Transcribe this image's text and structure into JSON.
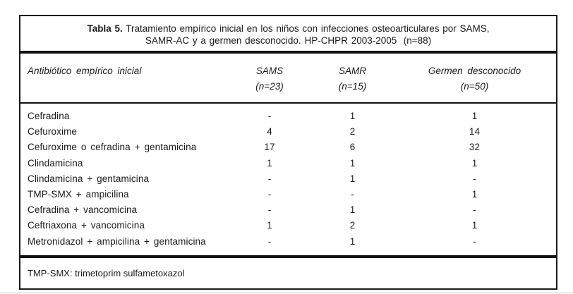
{
  "page": {
    "title": {
      "label_bold": "Tabla 5.",
      "line1_rest": " Tratamiento empírico inicial en los niños con infecciones osteoarticulares por SAMS,",
      "line2": "SAMR-AC y a germen desconocido. HP-CHPR 2003-2005  (n=88)"
    },
    "header": {
      "col_antibiotic": "Antibiótico empírico inicial",
      "col_sams": "SAMS",
      "col_sams_n": "(n=23)",
      "col_samr": "SAMR",
      "col_samr_n": "(n=15)",
      "col_unknown": "Germen desconocido",
      "col_unknown_n": "(n=50)"
    },
    "rows": [
      {
        "antibiotic": "Cefradina",
        "sams": "-",
        "samr": "1",
        "unknown": "1"
      },
      {
        "antibiotic": "Cefuroxime",
        "sams": "4",
        "samr": "2",
        "unknown": "14"
      },
      {
        "antibiotic": "Cefuroxime o cefradina + gentamicina",
        "sams": "17",
        "samr": "6",
        "unknown": "32"
      },
      {
        "antibiotic": "Clindamicina",
        "sams": "1",
        "samr": "1",
        "unknown": "1"
      },
      {
        "antibiotic": "Clindamicina + gentamicina",
        "sams": "-",
        "samr": "1",
        "unknown": "-"
      },
      {
        "antibiotic": "TMP-SMX + ampicilina",
        "sams": "-",
        "samr": "-",
        "unknown": "1"
      },
      {
        "antibiotic": "Cefradina + vancomicina",
        "sams": "-",
        "samr": "1",
        "unknown": "-"
      },
      {
        "antibiotic": "Ceftriaxona + vancomicina",
        "sams": "1",
        "samr": "2",
        "unknown": "1"
      },
      {
        "antibiotic": "Metronidazol + ampicilina + gentamicina",
        "sams": "-",
        "samr": "1",
        "unknown": "-"
      }
    ],
    "footnote": "TMP-SMX: trimetoprim sulfametoxazol",
    "colors": {
      "text": "#1a1a1a",
      "border": "#111111",
      "background": "#ffffff"
    }
  }
}
